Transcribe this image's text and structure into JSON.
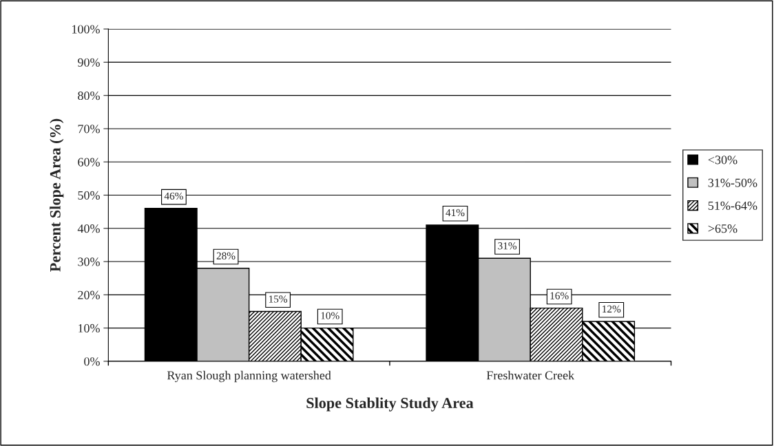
{
  "chart_data": {
    "type": "bar",
    "categories": [
      "Ryan Slough planning watershed",
      "Freshwater Creek"
    ],
    "series": [
      {
        "name": "<30%",
        "color": "#000000",
        "values": [
          46,
          41
        ],
        "value_labels": [
          "46%",
          "41%"
        ]
      },
      {
        "name": "31%-50%",
        "color": "#c0c0c0",
        "values": [
          28,
          31
        ],
        "value_labels": [
          "28%",
          "31%"
        ]
      },
      {
        "name": "51%-64%",
        "color": "#000000",
        "values": [
          15,
          16
        ],
        "value_labels": [
          "15%",
          "16%"
        ]
      },
      {
        "name": ">65%",
        "color": "#000000",
        "values": [
          10,
          12
        ],
        "value_labels": [
          "10%",
          "12%"
        ]
      }
    ],
    "xlabel": "Slope Stablity Study Area",
    "ylabel": "Percent Slope Area (%)",
    "ylim": [
      0,
      100
    ],
    "yticks": [
      {
        "value": 0,
        "label": "0%"
      },
      {
        "value": 10,
        "label": "10%"
      },
      {
        "value": 20,
        "label": "20%"
      },
      {
        "value": 30,
        "label": "30%"
      },
      {
        "value": 40,
        "label": "40%"
      },
      {
        "value": 50,
        "label": "50%"
      },
      {
        "value": 60,
        "label": "60%"
      },
      {
        "value": 70,
        "label": "70%"
      },
      {
        "value": 80,
        "label": "80%"
      },
      {
        "value": 90,
        "label": "90%"
      },
      {
        "value": 100,
        "label": "100%"
      }
    ],
    "grid": "y",
    "legend": "right"
  }
}
